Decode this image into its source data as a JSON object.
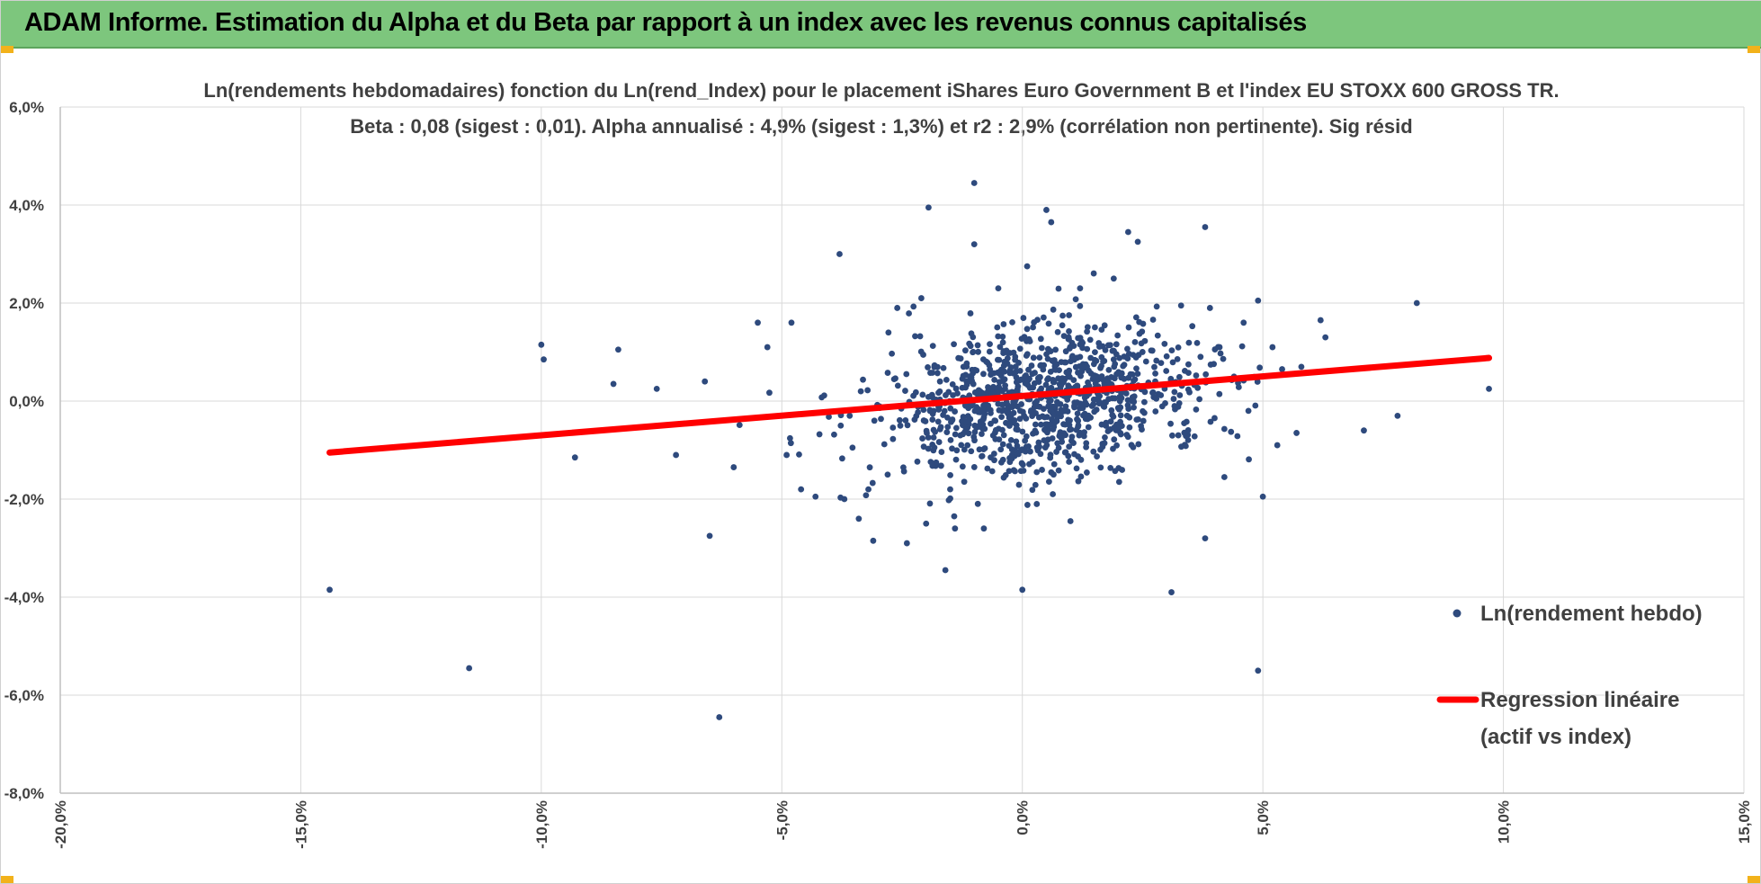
{
  "header": {
    "title": "ADAM Informe. Estimation du Alpha et du Beta par rapport à un index avec les revenus connus capitalisés",
    "background": "#7dc67d",
    "corner_color": "#f2b21b"
  },
  "chart_data": {
    "type": "scatter",
    "title": "Ln(rendements hebdomadaires) fonction du Ln(rend_Index) pour le placement iShares Euro Government B et l'index EU STOXX 600 GROSS TR.",
    "subtitle": "Beta : 0,08 (sigest : 0,01).  Alpha annualisé : 4,9% (sigest : 1,3%) et r2 : 2,9% (corrélation non pertinente). Sig résid",
    "xlabel": "",
    "ylabel": "",
    "xlim": [
      -20,
      15
    ],
    "ylim": [
      -8,
      6
    ],
    "x_ticks": [
      "-20,0%",
      "-15,0%",
      "-10,0%",
      "-5,0%",
      "0,0%",
      "5,0%",
      "10,0%",
      "15,0%"
    ],
    "y_ticks": [
      "6,0%",
      "4,0%",
      "2,0%",
      "0,0%",
      "-2,0%",
      "-4,0%",
      "-6,0%",
      "-8,0%"
    ],
    "grid": true,
    "legend_position": "right",
    "series": [
      {
        "name": "Ln(rendement hebdo)",
        "kind": "scatter",
        "color": "#2e4a7d",
        "points": [
          [
            -14.4,
            -3.85
          ],
          [
            -11.5,
            -5.45
          ],
          [
            -6.3,
            -6.45
          ],
          [
            4.9,
            -5.5
          ],
          [
            -10.0,
            1.15
          ],
          [
            -9.95,
            0.85
          ],
          [
            -8.4,
            1.05
          ],
          [
            -8.5,
            0.35
          ],
          [
            -9.3,
            -1.15
          ],
          [
            -7.6,
            0.25
          ],
          [
            -7.2,
            -1.1
          ],
          [
            -6.5,
            -2.75
          ],
          [
            -6.6,
            0.4
          ],
          [
            -6.0,
            -1.35
          ],
          [
            -5.5,
            1.6
          ],
          [
            -5.3,
            1.1
          ],
          [
            -4.8,
            1.6
          ],
          [
            -4.9,
            -1.1
          ],
          [
            -4.6,
            -1.8
          ],
          [
            -4.3,
            -1.95
          ],
          [
            -3.8,
            3.0
          ],
          [
            -3.7,
            -2.0
          ],
          [
            -3.4,
            -2.4
          ],
          [
            -3.2,
            -1.8
          ],
          [
            -2.6,
            1.9
          ],
          [
            -2.1,
            2.1
          ],
          [
            -1.95,
            3.95
          ],
          [
            -2.0,
            -2.5
          ],
          [
            -1.6,
            -3.45
          ],
          [
            -1.4,
            -2.6
          ],
          [
            -1.0,
            3.2
          ],
          [
            -1.0,
            4.45
          ],
          [
            -0.8,
            -2.6
          ],
          [
            -0.5,
            2.3
          ],
          [
            0.0,
            -3.85
          ],
          [
            0.1,
            2.75
          ],
          [
            0.5,
            3.9
          ],
          [
            0.6,
            3.65
          ],
          [
            0.3,
            -2.1
          ],
          [
            0.3,
            -1.45
          ],
          [
            1.0,
            -2.45
          ],
          [
            1.2,
            2.3
          ],
          [
            1.9,
            2.5
          ],
          [
            2.2,
            3.45
          ],
          [
            2.4,
            3.25
          ],
          [
            3.1,
            -3.9
          ],
          [
            3.3,
            1.95
          ],
          [
            3.8,
            3.55
          ],
          [
            3.8,
            -2.8
          ],
          [
            3.9,
            1.9
          ],
          [
            4.2,
            -1.55
          ],
          [
            4.6,
            1.6
          ],
          [
            4.9,
            2.05
          ],
          [
            5.0,
            -1.95
          ],
          [
            5.7,
            -0.65
          ],
          [
            6.2,
            1.65
          ],
          [
            6.3,
            1.3
          ],
          [
            7.1,
            -0.6
          ],
          [
            7.8,
            -0.3
          ],
          [
            8.2,
            2.0
          ],
          [
            9.7,
            0.25
          ],
          [
            5.2,
            1.1
          ],
          [
            5.8,
            0.7
          ],
          [
            5.4,
            0.65
          ],
          [
            5.3,
            -0.9
          ],
          [
            4.7,
            -0.2
          ],
          [
            4.4,
            0.5
          ],
          [
            4.1,
            1.1
          ],
          [
            -2.8,
            -1.5
          ],
          [
            -3.1,
            -2.85
          ],
          [
            -1.5,
            -1.8
          ],
          [
            -2.4,
            -2.9
          ]
        ]
      },
      {
        "name": "Regression linéaire (actif vs index)",
        "kind": "line",
        "color": "#ff0000",
        "points": [
          [
            -14.4,
            -1.05
          ],
          [
            9.7,
            0.88
          ]
        ]
      }
    ]
  },
  "legend": {
    "scatter_label": "Ln(rendement hebdo)",
    "line_label_1": "Regression linéaire",
    "line_label_2": "(actif vs index)"
  }
}
